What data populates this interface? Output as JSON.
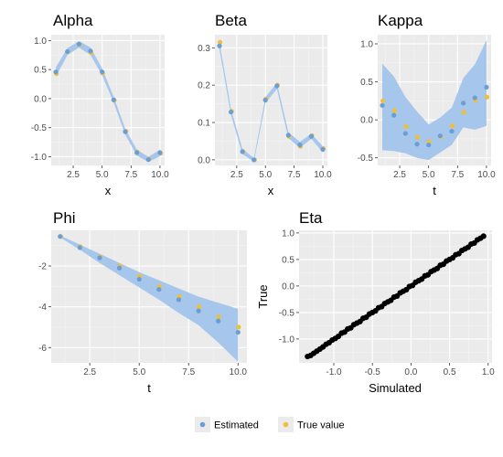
{
  "colors": {
    "panel_bg": "#ebebeb",
    "grid_major": "#ffffff",
    "grid_minor": "#f4f4f4",
    "ribbon": "#a6c6ec",
    "estimated": "#6a9fd6",
    "true_value": "#eebf3b",
    "scatter": "#000000",
    "legend_key_bg": "#ebebeb"
  },
  "legend": {
    "items": [
      {
        "label": "Estimated",
        "color_key": "estimated"
      },
      {
        "label": "True value",
        "color_key": "true_value"
      }
    ]
  },
  "chart_data": [
    {
      "type": "line",
      "title": "Alpha",
      "xlabel": "x",
      "ylabel": "",
      "xlim": [
        0.6,
        10.4
      ],
      "ylim": [
        -1.15,
        1.1
      ],
      "xticks": [
        2.5,
        5.0,
        7.5,
        10.0
      ],
      "xtick_labels": [
        "2.5",
        "5.0",
        "7.5",
        "10.0"
      ],
      "yticks": [
        -1.0,
        -0.5,
        0.0,
        0.5,
        1.0
      ],
      "ytick_labels": [
        "-1.0",
        "-0.5",
        "0.0",
        "0.5",
        "1.0"
      ],
      "x": [
        1,
        2,
        3,
        4,
        5,
        6,
        7,
        8,
        9,
        10
      ],
      "series": [
        {
          "name": "Estimated",
          "values": [
            0.46,
            0.81,
            0.94,
            0.82,
            0.46,
            -0.02,
            -0.57,
            -0.93,
            -1.05,
            -0.93
          ]
        },
        {
          "name": "True value",
          "values": [
            0.43,
            0.81,
            0.93,
            0.79,
            0.44,
            -0.03,
            -0.56,
            -0.92,
            -1.04,
            -0.94
          ]
        }
      ],
      "band_lower": [
        0.38,
        0.75,
        0.88,
        0.75,
        0.4,
        -0.07,
        -0.62,
        -0.98,
        -1.09,
        -0.99
      ],
      "band_upper": [
        0.54,
        0.87,
        0.99,
        0.88,
        0.52,
        0.03,
        -0.52,
        -0.88,
        -1.0,
        -0.88
      ]
    },
    {
      "type": "line",
      "title": "Beta",
      "xlabel": "x",
      "ylabel": "",
      "xlim": [
        0.6,
        10.4
      ],
      "ylim": [
        -0.015,
        0.335
      ],
      "xticks": [
        2.5,
        5.0,
        7.5,
        10.0
      ],
      "xtick_labels": [
        "2.5",
        "5.0",
        "7.5",
        "10.0"
      ],
      "yticks": [
        0.0,
        0.1,
        0.2,
        0.3
      ],
      "ytick_labels": [
        "0.0",
        "0.1",
        "0.2",
        "0.3"
      ],
      "x": [
        1,
        2,
        3,
        4,
        5,
        6,
        7,
        8,
        9,
        10
      ],
      "series": [
        {
          "name": "Estimated",
          "values": [
            0.305,
            0.128,
            0.022,
            0.0,
            0.16,
            0.198,
            0.066,
            0.04,
            0.063,
            0.028
          ]
        },
        {
          "name": "True value",
          "values": [
            0.315,
            0.13,
            0.022,
            0.0,
            0.163,
            0.2,
            0.063,
            0.036,
            0.065,
            0.03
          ]
        }
      ],
      "band_lower": [
        0.295,
        0.12,
        0.015,
        -0.005,
        0.152,
        0.19,
        0.058,
        0.032,
        0.056,
        0.02
      ],
      "band_upper": [
        0.315,
        0.136,
        0.029,
        0.005,
        0.168,
        0.206,
        0.074,
        0.048,
        0.07,
        0.036
      ]
    },
    {
      "type": "line",
      "title": "Kappa",
      "xlabel": "t",
      "ylabel": "",
      "xlim": [
        0.6,
        10.4
      ],
      "ylim": [
        -0.6,
        1.12
      ],
      "xticks": [
        2.5,
        5.0,
        7.5,
        10.0
      ],
      "xtick_labels": [
        "2.5",
        "5.0",
        "7.5",
        "10.0"
      ],
      "yticks": [
        -0.5,
        0.0,
        0.5,
        1.0
      ],
      "ytick_labels": [
        "-0.5",
        "0.0",
        "0.5",
        "1.0"
      ],
      "x": [
        1,
        2,
        3,
        4,
        5,
        6,
        7,
        8,
        9,
        10
      ],
      "series": [
        {
          "name": "Estimated",
          "values": [
            0.19,
            0.06,
            -0.18,
            -0.32,
            -0.33,
            -0.21,
            -0.15,
            0.22,
            0.29,
            0.43
          ]
        },
        {
          "name": "True value",
          "values": [
            0.25,
            0.12,
            -0.09,
            -0.23,
            -0.29,
            -0.22,
            -0.08,
            0.1,
            0.26,
            0.3
          ]
        }
      ],
      "band_lower": [
        -0.4,
        -0.41,
        -0.44,
        -0.5,
        -0.53,
        -0.43,
        -0.33,
        -0.1,
        -0.13,
        -0.08
      ],
      "band_upper": [
        0.74,
        0.57,
        0.3,
        0.11,
        -0.06,
        0.03,
        0.16,
        0.55,
        0.73,
        1.05
      ]
    },
    {
      "type": "line",
      "title": "Phi",
      "xlabel": "t",
      "ylabel": "",
      "xlim": [
        0.55,
        10.45
      ],
      "ylim": [
        -6.75,
        -0.25
      ],
      "xticks": [
        2.5,
        5.0,
        7.5,
        10.0
      ],
      "xtick_labels": [
        "2.5",
        "5.0",
        "7.5",
        "10.0"
      ],
      "yticks": [
        -6,
        -4,
        -2
      ],
      "ytick_labels": [
        "-6",
        "-4",
        "-2"
      ],
      "x": [
        1,
        2,
        3,
        4,
        5,
        6,
        7,
        8,
        9,
        10
      ],
      "series": [
        {
          "name": "Estimated",
          "values": [
            -0.55,
            -1.1,
            -1.6,
            -2.1,
            -2.65,
            -3.15,
            -3.65,
            -4.2,
            -4.7,
            -5.25
          ]
        },
        {
          "name": "True value",
          "values": [
            -0.55,
            -1.05,
            -1.55,
            -2.0,
            -2.5,
            -3.0,
            -3.5,
            -4.0,
            -4.5,
            -5.0
          ]
        }
      ],
      "band_lower": [
        -0.6,
        -1.2,
        -1.85,
        -2.45,
        -3.05,
        -3.65,
        -4.3,
        -4.9,
        -5.75,
        -6.7
      ],
      "band_upper": [
        -0.5,
        -0.95,
        -1.4,
        -1.85,
        -2.3,
        -2.7,
        -3.1,
        -3.5,
        -3.8,
        -4.1
      ]
    },
    {
      "type": "scatter",
      "title": "Eta",
      "xlabel": "Simulated",
      "ylabel": "True",
      "xlim": [
        -1.45,
        1.05
      ],
      "ylim": [
        -1.45,
        1.05
      ],
      "xticks": [
        -1.0,
        -0.5,
        0.0,
        0.5,
        1.0
      ],
      "xtick_labels": [
        "-1.0",
        "-0.5",
        "0.0",
        "0.5",
        "1.0"
      ],
      "yticks": [
        -1.0,
        -0.5,
        0.0,
        0.5,
        1.0
      ],
      "ytick_labels": [
        "-1.0",
        "-0.5",
        "0.0",
        "0.5",
        "1.0"
      ],
      "x": [
        -1.34,
        -1.3,
        -1.26,
        -1.22,
        -1.18,
        -1.14,
        -1.1,
        -1.06,
        -1.02,
        -0.98,
        -0.94,
        -0.9,
        -0.86,
        -0.82,
        -0.78,
        -0.74,
        -0.7,
        -0.66,
        -0.62,
        -0.58,
        -0.54,
        -0.5,
        -0.46,
        -0.42,
        -0.38,
        -0.34,
        -0.3,
        -0.26,
        -0.22,
        -0.18,
        -0.14,
        -0.1,
        -0.06,
        -0.02,
        0.02,
        0.06,
        0.1,
        0.14,
        0.18,
        0.22,
        0.26,
        0.3,
        0.34,
        0.38,
        0.42,
        0.46,
        0.5,
        0.54,
        0.58,
        0.62,
        0.66,
        0.7,
        0.74,
        0.78,
        0.82,
        0.86,
        0.9,
        0.94
      ],
      "y": [
        -1.33,
        -1.31,
        -1.27,
        -1.23,
        -1.19,
        -1.15,
        -1.1,
        -1.07,
        -1.02,
        -0.99,
        -0.95,
        -0.89,
        -0.87,
        -0.81,
        -0.79,
        -0.73,
        -0.7,
        -0.67,
        -0.61,
        -0.59,
        -0.53,
        -0.5,
        -0.47,
        -0.41,
        -0.39,
        -0.33,
        -0.3,
        -0.27,
        -0.21,
        -0.19,
        -0.13,
        -0.1,
        -0.07,
        -0.01,
        0.01,
        0.07,
        0.1,
        0.13,
        0.19,
        0.21,
        0.27,
        0.3,
        0.33,
        0.39,
        0.41,
        0.47,
        0.5,
        0.53,
        0.59,
        0.61,
        0.67,
        0.7,
        0.73,
        0.79,
        0.81,
        0.87,
        0.9,
        0.94
      ]
    }
  ]
}
